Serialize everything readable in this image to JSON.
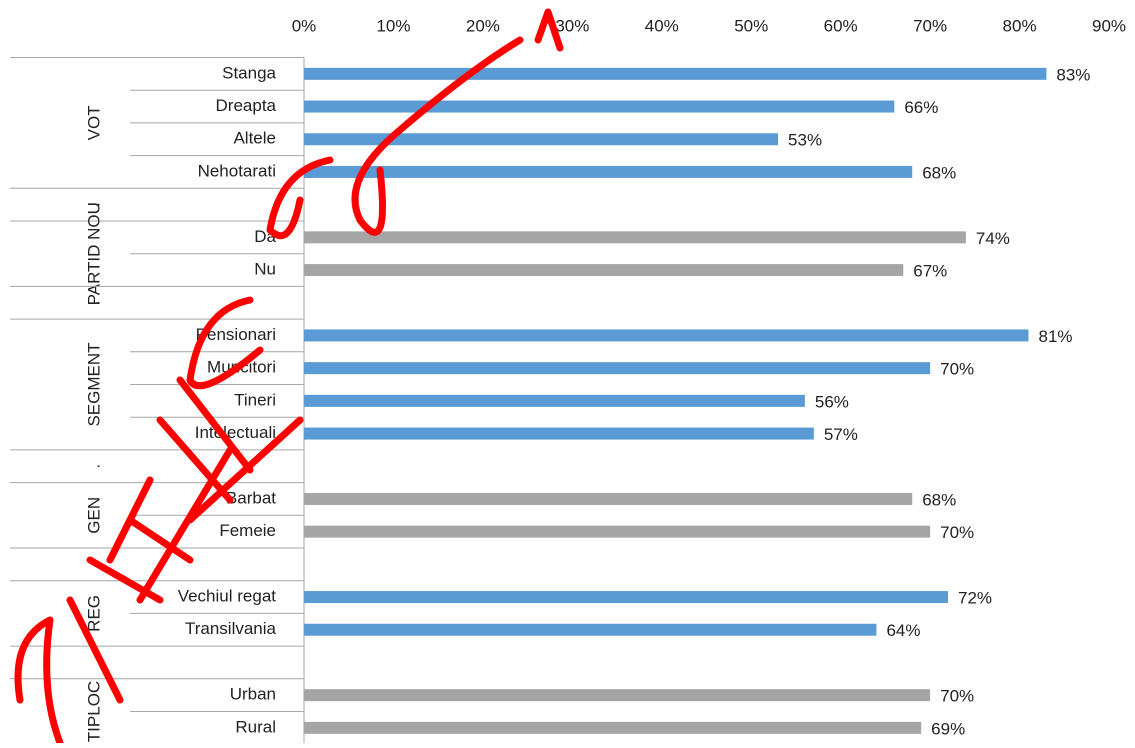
{
  "chart_data": {
    "type": "bar",
    "xlim": [
      0,
      90
    ],
    "xticks": [
      {
        "value": 0,
        "label": "0%"
      },
      {
        "value": 10,
        "label": "10%"
      },
      {
        "value": 20,
        "label": "20%"
      },
      {
        "value": 30,
        "label": "30%"
      },
      {
        "value": 40,
        "label": "40%"
      },
      {
        "value": 50,
        "label": "50%"
      },
      {
        "value": 60,
        "label": "60%"
      },
      {
        "value": 70,
        "label": "70%"
      },
      {
        "value": 80,
        "label": "80%"
      },
      {
        "value": 90,
        "label": "90%"
      }
    ],
    "groups": [
      {
        "label": "VOT",
        "color": "#5b9bd5",
        "categories": [
          "Stanga",
          "Dreapta",
          "Altele",
          "Nehotarati"
        ],
        "values": [
          83,
          66,
          53,
          68
        ],
        "value_labels": [
          "83%",
          "66%",
          "53%",
          "68%"
        ]
      },
      {
        "label": ".",
        "color": "#5b9bd5",
        "categories": [
          null
        ],
        "values": [
          null
        ],
        "value_labels": [
          null
        ]
      },
      {
        "label": "PARTID NOU",
        "color": "#a5a5a5",
        "categories": [
          "Da",
          "Nu"
        ],
        "values": [
          74,
          67
        ],
        "value_labels": [
          "74%",
          "67%"
        ]
      },
      {
        "label": ".",
        "color": "#a5a5a5",
        "categories": [
          null
        ],
        "values": [
          null
        ],
        "value_labels": [
          null
        ]
      },
      {
        "label": "SEGMENT",
        "color": "#5b9bd5",
        "categories": [
          "Pensionari",
          "Muncitori",
          "Tineri",
          "Intelectuali"
        ],
        "values": [
          81,
          70,
          56,
          57
        ],
        "value_labels": [
          "81%",
          "70%",
          "56%",
          "57%"
        ]
      },
      {
        "label": ".",
        "color": "#5b9bd5",
        "categories": [
          null
        ],
        "values": [
          null
        ],
        "value_labels": [
          null
        ]
      },
      {
        "label": "GEN",
        "color": "#a5a5a5",
        "categories": [
          "Barbat",
          "Femeie"
        ],
        "values": [
          68,
          70
        ],
        "value_labels": [
          "68%",
          "70%"
        ]
      },
      {
        "label": ".",
        "color": "#a5a5a5",
        "categories": [
          null
        ],
        "values": [
          null
        ],
        "value_labels": [
          null
        ]
      },
      {
        "label": "REG",
        "color": "#5b9bd5",
        "categories": [
          "Vechiul regat",
          "Transilvania"
        ],
        "values": [
          72,
          64
        ],
        "value_labels": [
          "72%",
          "64%"
        ]
      },
      {
        "label": ".",
        "color": "#5b9bd5",
        "categories": [
          null
        ],
        "values": [
          null
        ],
        "value_labels": [
          null
        ]
      },
      {
        "label": "TIPLOC",
        "color": "#a5a5a5",
        "categories": [
          "Urban",
          "Rural"
        ],
        "values": [
          70,
          69
        ],
        "value_labels": [
          "70%",
          "69%"
        ]
      }
    ]
  }
}
